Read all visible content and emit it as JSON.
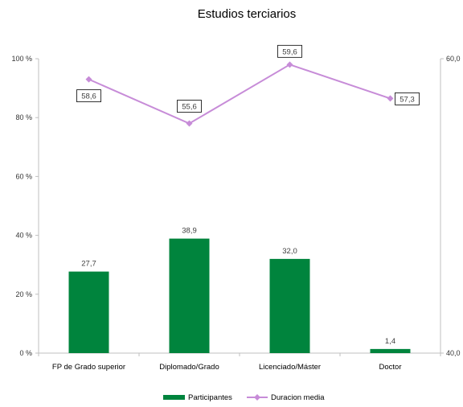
{
  "chart_data": {
    "type": "bar",
    "title": "Estudios terciarios",
    "categories": [
      "FP de Grado superior",
      "Diplomado/Grado",
      "Licenciado/Máster",
      "Doctor"
    ],
    "series": [
      {
        "name": "Participantes",
        "type": "bar",
        "axis": "left",
        "color": "#00843D",
        "values": [
          27.7,
          38.9,
          32.0,
          1.4
        ],
        "labels": [
          "27,7",
          "38,9",
          "32,0",
          "1,4"
        ]
      },
      {
        "name": "Duracion media",
        "type": "line",
        "axis": "right",
        "color": "#C78CD8",
        "values": [
          58.6,
          55.6,
          59.6,
          57.3
        ],
        "labels": [
          "58,6",
          "55,6",
          "59,6",
          "57,3"
        ]
      }
    ],
    "y_left": {
      "ylim": [
        0,
        100
      ],
      "ticks": [
        0,
        20,
        40,
        60,
        80,
        100
      ],
      "tick_labels": [
        "0 %",
        "20 %",
        "40 %",
        "60 %",
        "80 %",
        "100 %"
      ]
    },
    "y_right": {
      "ylim": [
        40,
        60
      ],
      "ticks": [
        40,
        60
      ],
      "tick_labels": [
        "40,0",
        "60,0"
      ]
    },
    "grid": false,
    "legend": "bottom"
  }
}
